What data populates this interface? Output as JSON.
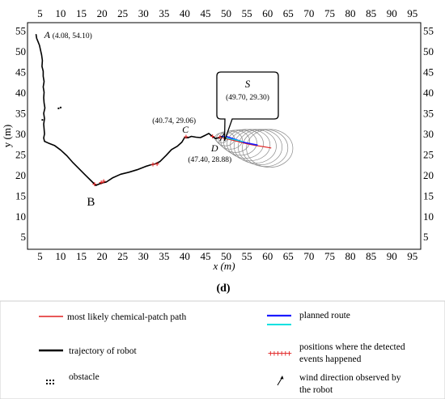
{
  "chart_data": {
    "type": "line",
    "panel_label": "(d)",
    "xlabel": "x (m)",
    "ylabel": "y (m)",
    "xlim": [
      2,
      97
    ],
    "ylim": [
      2,
      57
    ],
    "x_ticks": [
      "5",
      "10",
      "15",
      "20",
      "25",
      "30",
      "35",
      "40",
      "45",
      "50",
      "55",
      "60",
      "65",
      "70",
      "75",
      "80",
      "85",
      "90",
      "95"
    ],
    "y_ticks": [
      "55",
      "50",
      "45",
      "40",
      "35",
      "30",
      "25",
      "20",
      "15",
      "10",
      "5"
    ],
    "grid": false,
    "series": [
      {
        "name": "trajectory of robot",
        "color": "#000000",
        "points": [
          [
            4.08,
            54.1
          ],
          [
            4.2,
            53.2
          ],
          [
            4.5,
            52.5
          ],
          [
            4.9,
            51.5
          ],
          [
            5.1,
            50.5
          ],
          [
            5.4,
            49.2
          ],
          [
            5.6,
            47.8
          ],
          [
            5.5,
            46.4
          ],
          [
            5.8,
            45.2
          ],
          [
            5.8,
            44.0
          ],
          [
            6.0,
            42.7
          ],
          [
            5.8,
            41.4
          ],
          [
            6.0,
            40.1
          ],
          [
            5.9,
            38.8
          ],
          [
            6.0,
            37.5
          ],
          [
            6.2,
            36.3
          ],
          [
            5.9,
            35.0
          ],
          [
            6.1,
            33.7
          ],
          [
            5.9,
            32.4
          ],
          [
            6.0,
            31.2
          ],
          [
            6.1,
            30.0
          ],
          [
            5.9,
            29.0
          ],
          [
            6.1,
            28.2
          ],
          [
            7.0,
            27.8
          ],
          [
            8.5,
            27.2
          ],
          [
            10.0,
            26.1
          ],
          [
            11.5,
            24.7
          ],
          [
            13.0,
            23.0
          ],
          [
            14.5,
            21.5
          ],
          [
            16.0,
            20.0
          ],
          [
            17.5,
            18.5
          ],
          [
            18.5,
            17.5
          ],
          [
            19.7,
            18.0
          ],
          [
            21.0,
            18.3
          ],
          [
            22.5,
            19.3
          ],
          [
            24.5,
            20.2
          ],
          [
            26.5,
            20.7
          ],
          [
            28.5,
            21.3
          ],
          [
            30.5,
            22.1
          ],
          [
            31.8,
            22.5
          ],
          [
            32.8,
            22.7
          ],
          [
            34.0,
            23.3
          ],
          [
            35.5,
            24.8
          ],
          [
            36.8,
            26.2
          ],
          [
            38.2,
            27.0
          ],
          [
            39.3,
            28.0
          ],
          [
            40.0,
            29.2
          ],
          [
            40.74,
            29.06
          ],
          [
            41.6,
            29.4
          ],
          [
            42.7,
            29.2
          ],
          [
            43.8,
            29.1
          ],
          [
            44.8,
            29.6
          ],
          [
            45.8,
            30.1
          ],
          [
            46.5,
            29.5
          ],
          [
            47.4,
            28.88
          ],
          [
            48.3,
            29.1
          ],
          [
            49.0,
            29.4
          ],
          [
            49.7,
            29.3
          ]
        ]
      },
      {
        "name": "most likely chemical-patch path",
        "color": "#e02020",
        "points": [
          [
            49.2,
            29.0
          ],
          [
            51.0,
            28.6
          ],
          [
            53.0,
            28.1
          ],
          [
            55.0,
            27.6
          ],
          [
            57.0,
            27.2
          ],
          [
            59.0,
            26.9
          ],
          [
            60.8,
            26.6
          ]
        ]
      },
      {
        "name": "planned route",
        "color": "#1a1aff",
        "points": [
          [
            49.0,
            29.4
          ],
          [
            50.0,
            29.4
          ],
          [
            51.5,
            28.9
          ],
          [
            53.0,
            28.4
          ],
          [
            54.5,
            27.9
          ],
          [
            56.0,
            27.6
          ],
          [
            57.5,
            27.3
          ]
        ]
      },
      {
        "name": "planned route",
        "color": "#00e0e0",
        "points": [
          [
            49.5,
            29.1
          ],
          [
            51.0,
            28.8
          ],
          [
            52.5,
            28.5
          ],
          [
            54.0,
            28.1
          ]
        ]
      }
    ],
    "event_positions": [
      [
        18.2,
        17.8
      ],
      [
        19.8,
        18.2
      ],
      [
        20.4,
        18.5
      ],
      [
        32.3,
        22.6
      ],
      [
        33.3,
        22.7
      ],
      [
        40.3,
        29.3
      ],
      [
        46.7,
        29.4
      ],
      [
        48.5,
        29.2
      ]
    ],
    "obstacles": [
      [
        9.5,
        36.2
      ],
      [
        10.0,
        36.4
      ],
      [
        5.6,
        33.4
      ]
    ],
    "wind_direction_marker": [
      49.0,
      29.2
    ],
    "uncertainty_ellipses": [
      {
        "cx": 48.8,
        "cy": 29.0,
        "rx": 1.5,
        "ry": 1.2
      },
      {
        "cx": 49.8,
        "cy": 28.8,
        "rx": 2.2,
        "ry": 1.7
      },
      {
        "cx": 51.0,
        "cy": 28.5,
        "rx": 2.9,
        "ry": 2.2
      },
      {
        "cx": 52.2,
        "cy": 28.2,
        "rx": 3.5,
        "ry": 2.7
      },
      {
        "cx": 53.4,
        "cy": 27.9,
        "rx": 4.0,
        "ry": 3.1
      },
      {
        "cx": 54.6,
        "cy": 27.6,
        "rx": 4.4,
        "ry": 3.5
      },
      {
        "cx": 55.8,
        "cy": 27.3,
        "rx": 4.8,
        "ry": 3.8
      },
      {
        "cx": 57.0,
        "cy": 27.0,
        "rx": 5.1,
        "ry": 4.1
      },
      {
        "cx": 58.2,
        "cy": 26.8,
        "rx": 5.3,
        "ry": 4.3
      },
      {
        "cx": 59.4,
        "cy": 26.6,
        "rx": 5.5,
        "ry": 4.5
      },
      {
        "cx": 60.5,
        "cy": 26.5,
        "rx": 5.6,
        "ry": 4.6
      }
    ],
    "annotations": [
      {
        "id": "A",
        "letter": "A",
        "coords": "(4.08, 54.10)",
        "x": 4.08,
        "y": 54.1
      },
      {
        "id": "B",
        "letter": "B",
        "coords": "",
        "x": 18.5,
        "y": 17.5
      },
      {
        "id": "C",
        "letter": "C",
        "coords": "(40.74, 29.06)",
        "x": 40.74,
        "y": 29.06
      },
      {
        "id": "D",
        "letter": "D",
        "coords": "(47.40, 28.88)",
        "x": 47.4,
        "y": 28.88
      },
      {
        "id": "S",
        "letter": "S",
        "coords": "(49.70, 29.30)",
        "x": 49.7,
        "y": 29.3
      }
    ]
  },
  "legend": {
    "chemical_path": "most likely chemical-patch path",
    "planned_route": "planned route",
    "trajectory": "trajectory of robot",
    "events_line1": "positions where the detected",
    "events_line2": "events happened",
    "obstacle": "obstacle",
    "wind_line1": "wind direction observed by",
    "wind_line2": "the robot",
    "colors": {
      "chemical_path": "#e02020",
      "planned_route": "#1a1aff",
      "planned_route_alt": "#00e0e0",
      "trajectory": "#000000",
      "events": "#e02020"
    }
  }
}
